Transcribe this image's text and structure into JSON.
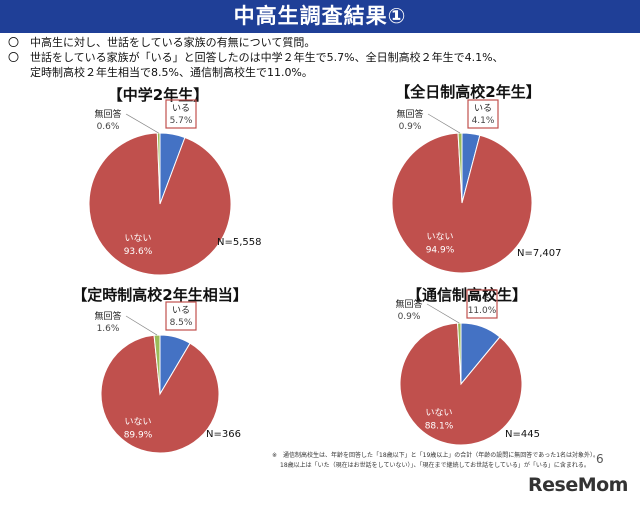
{
  "header": {
    "title": "中高生調査結果①"
  },
  "bullets": [
    {
      "mark": "〇",
      "text": "中高生に対し、世話をしている家族の有無について質問。"
    },
    {
      "mark": "〇",
      "text": "世話をしている家族が「いる」と回答したのは中学２年生で5.7%、全日制高校２年生で4.1%、",
      "cont": "定時制高校２年生相当で8.5%、通信制高校生で11.0%。"
    }
  ],
  "colors": {
    "banner": "#1f3f97",
    "iru": "#4472c4",
    "inai": "#c0504d",
    "mukaito": "#9bbb59",
    "highlight_box": "#c0504d"
  },
  "chart_data": [
    {
      "type": "pie",
      "title": "【中学2年生】",
      "n_label": "N=5,558",
      "slices": [
        {
          "label": "いる",
          "value": 5.7,
          "pct_text": "5.7%"
        },
        {
          "label": "いない",
          "value": 93.6,
          "pct_text": "93.6%"
        },
        {
          "label": "無回答",
          "value": 0.6,
          "pct_text": "0.6%"
        }
      ]
    },
    {
      "type": "pie",
      "title": "【全日制高校2年生】",
      "n_label": "N=7,407",
      "slices": [
        {
          "label": "いる",
          "value": 4.1,
          "pct_text": "4.1%"
        },
        {
          "label": "いない",
          "value": 94.9,
          "pct_text": "94.9%"
        },
        {
          "label": "無回答",
          "value": 0.9,
          "pct_text": "0.9%"
        }
      ]
    },
    {
      "type": "pie",
      "title": "【定時制高校2年生相当】",
      "n_label": "N=366",
      "slices": [
        {
          "label": "いる",
          "value": 8.5,
          "pct_text": "8.5%"
        },
        {
          "label": "いない",
          "value": 89.9,
          "pct_text": "89.9%"
        },
        {
          "label": "無回答",
          "value": 1.6,
          "pct_text": "1.6%"
        }
      ]
    },
    {
      "type": "pie",
      "title": "【通信制高校生】",
      "n_label": "N=445",
      "slices": [
        {
          "label": "いる",
          "value": 11.0,
          "pct_text": "11.0%"
        },
        {
          "label": "いない",
          "value": 88.1,
          "pct_text": "88.1%"
        },
        {
          "label": "無回答",
          "value": 0.9,
          "pct_text": "0.9%"
        }
      ]
    }
  ],
  "footnote": {
    "line1": "※　通信制高校生は、年齢を回答した「18歳以下」と「19歳以上」の合計（年齢の設問に無回答であった1名は対象外）。",
    "line2": "18歳以上は「いた（現在はお世話をしていない）」、「現在まで継続してお世話をしている」が「いる」に含まれる。"
  },
  "page_number": "6",
  "logo_text": "ReseMom"
}
